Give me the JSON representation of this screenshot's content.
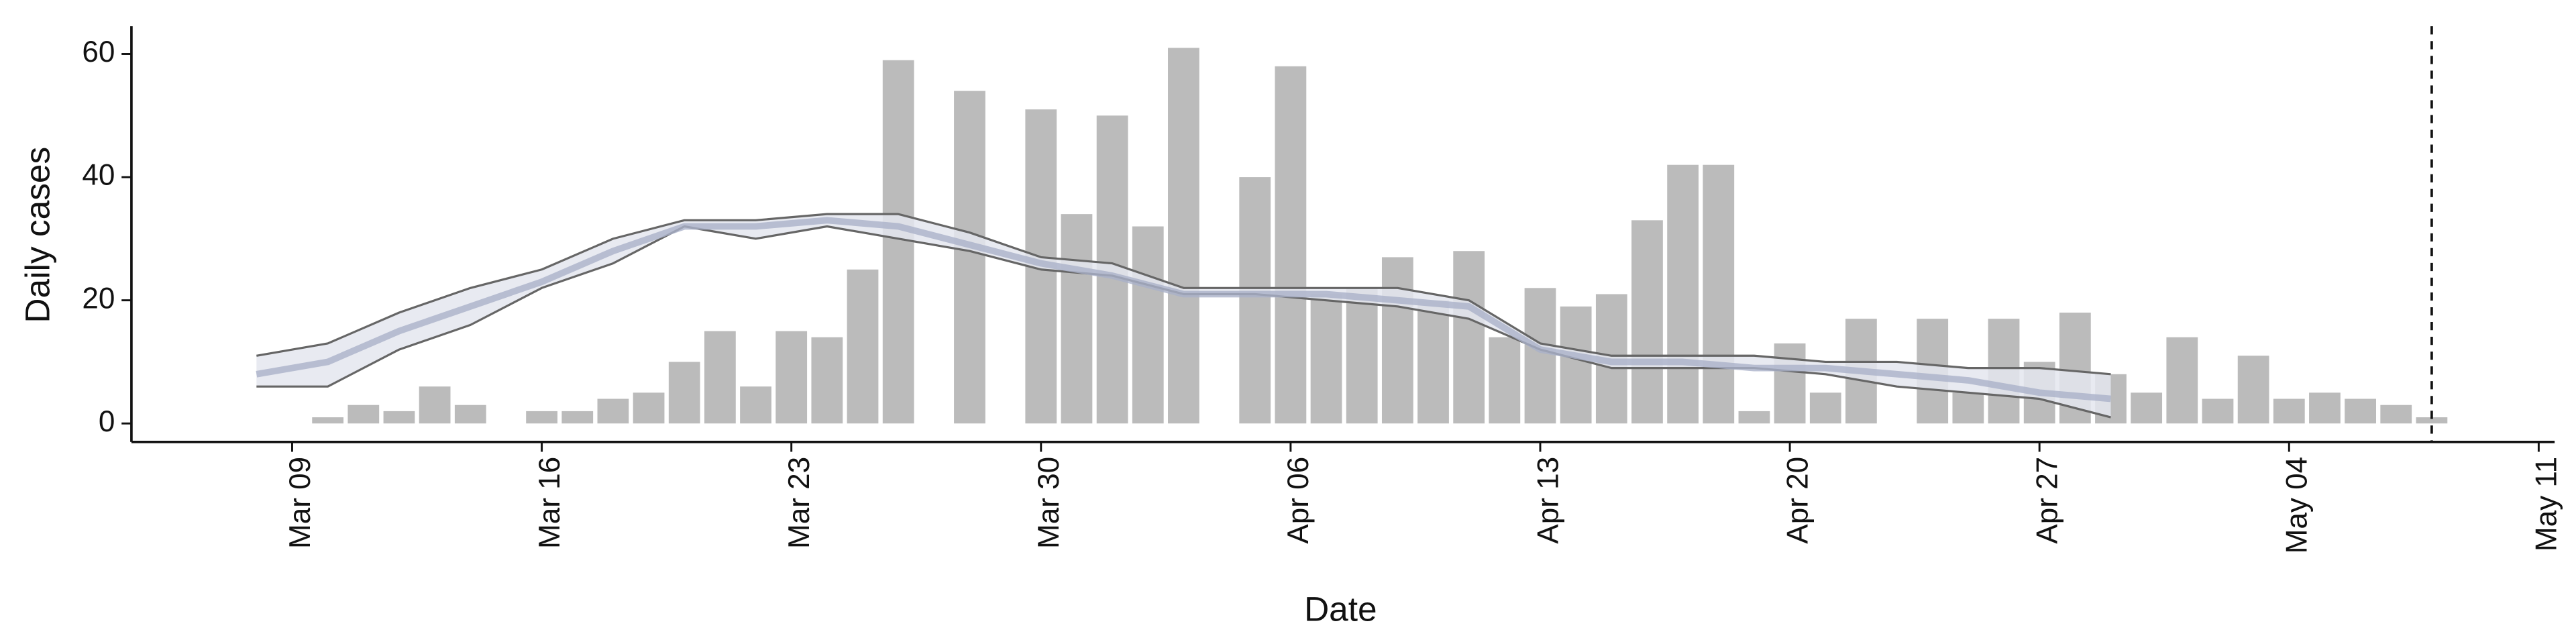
{
  "chart_data": {
    "type": "bar",
    "xlabel": "Date",
    "ylabel": "Daily cases",
    "color": "#bbbbbb",
    "x": [
      "Mar 10",
      "Mar 11",
      "Mar 12",
      "Mar 13",
      "Mar 14",
      "Mar 16",
      "Mar 17",
      "Mar 18",
      "Mar 19",
      "Mar 20",
      "Mar 21",
      "Mar 22",
      "Mar 23",
      "Mar 24",
      "Mar 25",
      "Mar 26",
      "Mar 28",
      "Mar 30",
      "Mar 31",
      "Apr 01",
      "Apr 02",
      "Apr 03",
      "Apr 05",
      "Apr 06",
      "Apr 07",
      "Apr 08",
      "Apr 09",
      "Apr 10",
      "Apr 11",
      "Apr 12",
      "Apr 13",
      "Apr 14",
      "Apr 15",
      "Apr 16",
      "Apr 17",
      "Apr 18",
      "Apr 19",
      "Apr 20",
      "Apr 21",
      "Apr 22",
      "Apr 24",
      "Apr 25",
      "Apr 26",
      "Apr 27",
      "Apr 28",
      "Apr 29",
      "Apr 30",
      "May 01",
      "May 02",
      "May 03",
      "May 04",
      "May 05",
      "May 06",
      "May 07",
      "May 08"
    ],
    "values": [
      1,
      3,
      2,
      6,
      3,
      2,
      2,
      4,
      5,
      10,
      15,
      6,
      15,
      14,
      25,
      59,
      54,
      51,
      34,
      50,
      32,
      61,
      40,
      58,
      21,
      22,
      27,
      20,
      28,
      14,
      22,
      19,
      21,
      33,
      42,
      42,
      2,
      13,
      5,
      17,
      17,
      5,
      17,
      10,
      18,
      8,
      5,
      14,
      4,
      11,
      4,
      5,
      4,
      3,
      1
    ],
    "band_color": "#e4e6ef",
    "lines": [
      {
        "color": "#666666",
        "x": [
          "Mar 08",
          "Mar 10",
          "Mar 12",
          "Mar 14",
          "Mar 16",
          "Mar 18",
          "Mar 20",
          "Mar 22",
          "Mar 24",
          "Mar 26",
          "Mar 28",
          "Mar 30",
          "Apr 01",
          "Apr 03",
          "Apr 05",
          "Apr 07",
          "Apr 09",
          "Apr 11",
          "Apr 13",
          "Apr 15",
          "Apr 17",
          "Apr 19",
          "Apr 21",
          "Apr 23",
          "Apr 25",
          "Apr 27",
          "Apr 29"
        ],
        "values": [
          11,
          13,
          18,
          22,
          25,
          30,
          33,
          33,
          34,
          34,
          31,
          27,
          26,
          22,
          22,
          22,
          22,
          20,
          13,
          11,
          11,
          11,
          10,
          10,
          9,
          9,
          8
        ]
      },
      {
        "color": "#666666",
        "x": [
          "Mar 08",
          "Mar 10",
          "Mar 12",
          "Mar 14",
          "Mar 16",
          "Mar 18",
          "Mar 20",
          "Mar 22",
          "Mar 24",
          "Mar 26",
          "Mar 28",
          "Mar 30",
          "Apr 01",
          "Apr 03",
          "Apr 05",
          "Apr 07",
          "Apr 09",
          "Apr 11",
          "Apr 13",
          "Apr 15",
          "Apr 17",
          "Apr 19",
          "Apr 21",
          "Apr 23",
          "Apr 25",
          "Apr 27",
          "Apr 29"
        ],
        "values": [
          6,
          6,
          12,
          16,
          22,
          26,
          32,
          30,
          32,
          30,
          28,
          25,
          24,
          21,
          21,
          20,
          19,
          17,
          12,
          9,
          9,
          9,
          8,
          6,
          5,
          4,
          1
        ]
      },
      {
        "color": "#aab1c9",
        "x": [
          "Mar 08",
          "Mar 10",
          "Mar 12",
          "Mar 14",
          "Mar 16",
          "Mar 18",
          "Mar 20",
          "Mar 22",
          "Mar 24",
          "Mar 26",
          "Mar 28",
          "Mar 30",
          "Apr 01",
          "Apr 03",
          "Apr 05",
          "Apr 07",
          "Apr 09",
          "Apr 11",
          "Apr 13",
          "Apr 15",
          "Apr 17",
          "Apr 19",
          "Apr 21",
          "Apr 23",
          "Apr 25",
          "Apr 27",
          "Apr 29"
        ],
        "values": [
          8,
          10,
          15,
          19,
          23,
          28,
          32,
          32,
          33,
          32,
          29,
          26,
          24,
          21,
          21,
          21,
          20,
          19,
          12,
          10,
          10,
          9,
          9,
          8,
          7,
          5,
          4
        ]
      }
    ],
    "vline": "May 08",
    "xlim": [
      "Mar 05",
      "May 12"
    ],
    "xticks": [
      "Mar 09",
      "Mar 16",
      "Mar 23",
      "Mar 30",
      "Apr 06",
      "Apr 13",
      "Apr 20",
      "Apr 27",
      "May 04",
      "May 11"
    ],
    "ylim": [
      -3,
      64.5
    ],
    "yticks": [
      0,
      20,
      40,
      60
    ]
  }
}
